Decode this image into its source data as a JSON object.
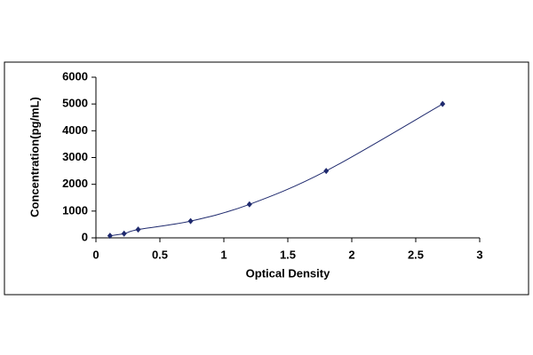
{
  "chart_data": {
    "type": "scatter",
    "x": [
      0.11,
      0.22,
      0.33,
      0.74,
      1.2,
      1.8,
      2.71
    ],
    "values": [
      78,
      156,
      312,
      625,
      1250,
      2500,
      5000
    ],
    "color": "#1f2a6e",
    "smooth_line": true,
    "xlabel": "Optical Density",
    "ylabel": "Concentration(pg/mL)",
    "xlim": [
      0,
      3
    ],
    "xticks": [
      0,
      0.5,
      1,
      1.5,
      2,
      2.5,
      3
    ],
    "ylim": [
      0,
      6000
    ],
    "yticks": [
      0,
      1000,
      2000,
      3000,
      4000,
      5000,
      6000
    ],
    "grid": false
  }
}
